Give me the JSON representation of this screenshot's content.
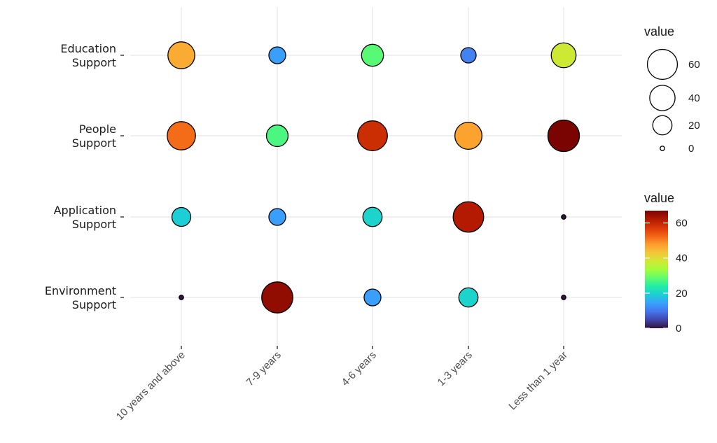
{
  "chart_data": {
    "type": "scatter",
    "subtype": "bubble",
    "x_categories": [
      "10 years and above",
      "7-9 years",
      "4-6 years",
      "1-3 years",
      "Less than 1 year"
    ],
    "y_categories": [
      "Education Support",
      "People Support",
      "Application Support",
      "Environment Support"
    ],
    "y_label_lines": [
      [
        "Education",
        "Support"
      ],
      [
        "People",
        "Support"
      ],
      [
        "Application",
        "Support"
      ],
      [
        "Environment",
        "Support"
      ]
    ],
    "values": [
      [
        46,
        14,
        28,
        11,
        38
      ],
      [
        52,
        27,
        59,
        47,
        67
      ],
      [
        19,
        14,
        20,
        62,
        0
      ],
      [
        0,
        65,
        14,
        20,
        0
      ]
    ],
    "size_legend": {
      "title": "value",
      "breaks": [
        60,
        40,
        20,
        0
      ]
    },
    "color_legend": {
      "title": "value",
      "breaks": [
        60,
        40,
        20,
        0
      ],
      "range": [
        0,
        67
      ],
      "palette": "turbo"
    },
    "grid": true,
    "legend_position": "right"
  },
  "colors": {
    "gridline": "#ebebeb",
    "marker_stroke": "#000000",
    "turbo_stops": [
      "#30123b",
      "#4145ab",
      "#4675ed",
      "#39a2fc",
      "#1bcfd4",
      "#24eca6",
      "#61fc6c",
      "#a4fc3b",
      "#d1e834",
      "#f3c63a",
      "#fe9b2d",
      "#f36315",
      "#d93806",
      "#b11901",
      "#7a0402"
    ]
  }
}
